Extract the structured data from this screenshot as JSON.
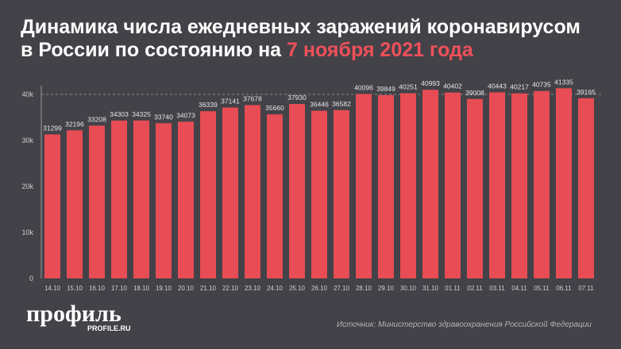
{
  "title": {
    "line1": "Динамика числа ежедневных заражений коронавирусом",
    "line2_prefix": "в России по состоянию на ",
    "line2_highlight": "7 ноября 2021 года"
  },
  "colors": {
    "bar": "#e84c54",
    "highlight": "#f0505a",
    "background": "#434248"
  },
  "chart_data": {
    "type": "bar",
    "categories": [
      "14.10",
      "15.10",
      "16.10",
      "17.10",
      "18.10",
      "19.10",
      "20.10",
      "21.10",
      "22.10",
      "23.10",
      "24.10",
      "25.10",
      "26.10",
      "27.10",
      "28.10",
      "29.10",
      "30.10",
      "31.10",
      "01.11",
      "02.11",
      "03.11",
      "04.11",
      "05.11",
      "06.11",
      "07.11"
    ],
    "values": [
      31299,
      32196,
      33208,
      34303,
      34325,
      33740,
      34073,
      36339,
      37141,
      37678,
      35660,
      37930,
      36446,
      36582,
      40096,
      39849,
      40251,
      40993,
      40402,
      39008,
      40443,
      40217,
      40735,
      41335,
      39165
    ],
    "yticks": [
      0,
      10000,
      20000,
      30000,
      40000
    ],
    "ytick_labels": [
      "0",
      "10k",
      "20k",
      "30k",
      "40k"
    ],
    "ylim": [
      0,
      40000
    ],
    "grid": "dashed line at 40k"
  },
  "logo": {
    "main": "профиль",
    "sub": "PROFILE.RU"
  },
  "source": "Источник: Министерство здравоохранения Российской Федерации"
}
